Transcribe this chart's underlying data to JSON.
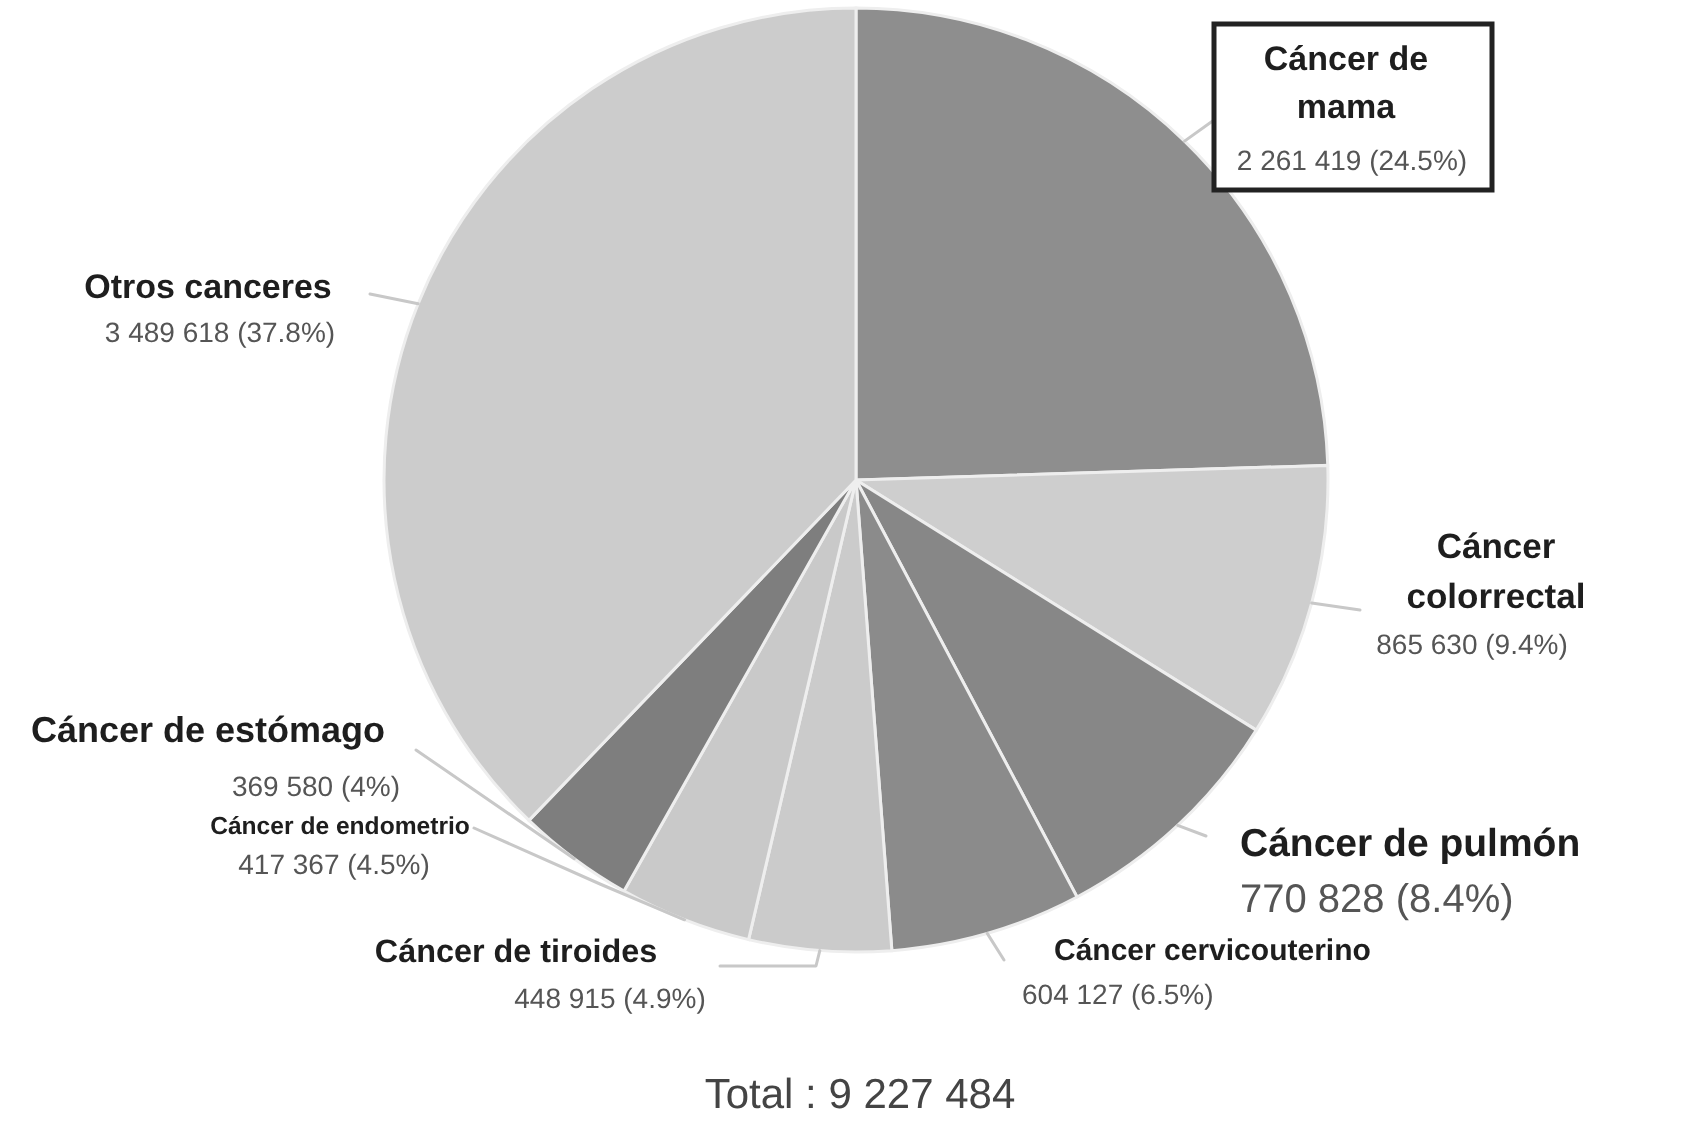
{
  "chart_data": {
    "type": "pie",
    "categories": [
      "Cáncer de mama",
      "Cáncer colorrectal",
      "Cáncer de pulmón",
      "Cáncer cervicouterino",
      "Cáncer de tiroides",
      "Cáncer de endometrio",
      "Cáncer de estómago",
      "Otros canceres"
    ],
    "values": [
      2261419,
      865630,
      770828,
      604127,
      448915,
      417367,
      369580,
      3489618
    ],
    "colors": [
      "#8e8e8e",
      "#cecece",
      "#878787",
      "#8b8b8b",
      "#cbcbcb",
      "#c9c9c9",
      "#7e7e7e",
      "#cccccc"
    ],
    "value_labels": [
      "2 261 419 (24.5%)",
      "865 630 (9.4%)",
      "770 828 (8.4%)",
      "604 127 (6.5%)",
      "448 915 (4.9%)",
      "417 367 (4.5%)",
      "369 580 (4%)",
      "3 489 618 (37.8%)"
    ],
    "annotations": [
      "Total : 9 227 484"
    ]
  }
}
